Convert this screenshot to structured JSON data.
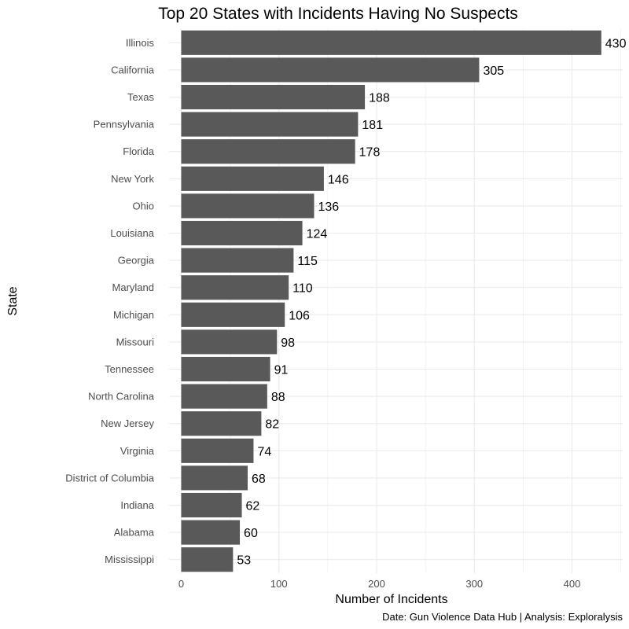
{
  "chart_data": {
    "type": "bar",
    "orientation": "horizontal",
    "title": "Top 20 States with Incidents Having No Suspects",
    "xlabel": "Number of Incidents",
    "ylabel": "State",
    "caption": "Date: Gun Violence Data Hub | Analysis: Exploralysis",
    "categories": [
      "Illinois",
      "California",
      "Texas",
      "Pennsylvania",
      "Florida",
      "New York",
      "Ohio",
      "Louisiana",
      "Georgia",
      "Maryland",
      "Michigan",
      "Missouri",
      "Tennessee",
      "North Carolina",
      "New Jersey",
      "Virginia",
      "District of Columbia",
      "Indiana",
      "Alabama",
      "Mississippi"
    ],
    "values": [
      430,
      305,
      188,
      181,
      178,
      146,
      136,
      124,
      115,
      110,
      106,
      98,
      91,
      88,
      82,
      74,
      68,
      62,
      60,
      53
    ],
    "xlim": [
      0,
      450
    ],
    "xticks": [
      0,
      100,
      200,
      300,
      400
    ],
    "grid": true,
    "bar_color": "#595959",
    "grid_color": "#ebebeb"
  }
}
